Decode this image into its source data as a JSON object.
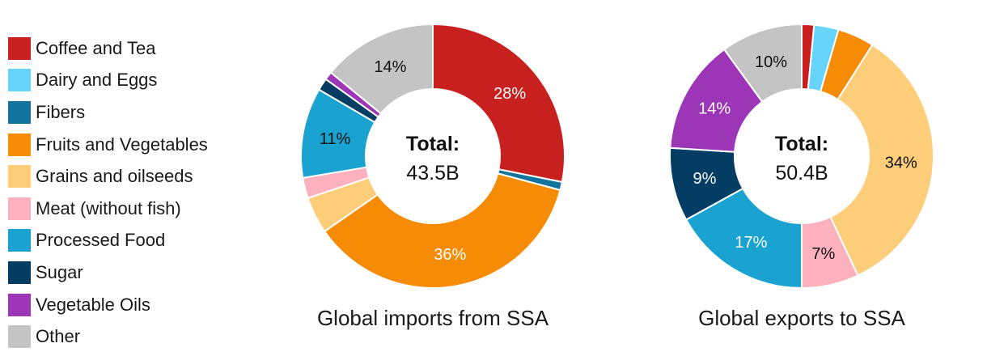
{
  "legend": {
    "items": [
      {
        "label": "Coffee and Tea",
        "color": "#c8201e"
      },
      {
        "label": "Dairy and Eggs",
        "color": "#66d4fb"
      },
      {
        "label": "Fibers",
        "color": "#12739f"
      },
      {
        "label": "Fruits and Vegetables",
        "color": "#f68c06"
      },
      {
        "label": "Grains and oilseeds",
        "color": "#fdcd7a"
      },
      {
        "label": "Meat (without fish)",
        "color": "#fdb0bd"
      },
      {
        "label": "Processed Food",
        "color": "#1aa3d1"
      },
      {
        "label": "Sugar",
        "color": "#033d63"
      },
      {
        "label": "Vegetable Oils",
        "color": "#9d35b7"
      },
      {
        "label": "Other",
        "color": "#c4c4c4"
      }
    ]
  },
  "chart_data": [
    {
      "type": "pie",
      "subtype": "donut",
      "caption": "Global imports from SSA",
      "center_title": "Total:",
      "center_value": "43.5B",
      "categories": [
        "Coffee and Tea",
        "Dairy and Eggs",
        "Fibers",
        "Fruits and Vegetables",
        "Grains and oilseeds",
        "Meat (without fish)",
        "Processed Food",
        "Sugar",
        "Vegetable Oils",
        "Other"
      ],
      "values": [
        28,
        0,
        1,
        36,
        4.5,
        2.5,
        11,
        1.5,
        1,
        14
      ],
      "labels": [
        "28%",
        "",
        "",
        "36%",
        "",
        "",
        "11%",
        "",
        "",
        "14%"
      ],
      "label_colors": [
        "#ffffff",
        "",
        "",
        "#ffffff",
        "",
        "",
        "#111111",
        "",
        "",
        "#111111"
      ]
    },
    {
      "type": "pie",
      "subtype": "donut",
      "caption": "Global exports to SSA",
      "center_title": "Total:",
      "center_value": "50.4B",
      "categories": [
        "Coffee and Tea",
        "Dairy and Eggs",
        "Fibers",
        "Fruits and Vegetables",
        "Grains and oilseeds",
        "Meat (without fish)",
        "Processed Food",
        "Sugar",
        "Vegetable Oils",
        "Other"
      ],
      "values": [
        1.5,
        3,
        0,
        4.5,
        34,
        7,
        17,
        9,
        14,
        10
      ],
      "labels": [
        "",
        "",
        "",
        "",
        "34%",
        "7%",
        "17%",
        "9%",
        "14%",
        "10%"
      ],
      "label_colors": [
        "",
        "",
        "",
        "",
        "#111111",
        "#111111",
        "#ffffff",
        "#ffffff",
        "#ffffff",
        "#111111"
      ]
    }
  ]
}
